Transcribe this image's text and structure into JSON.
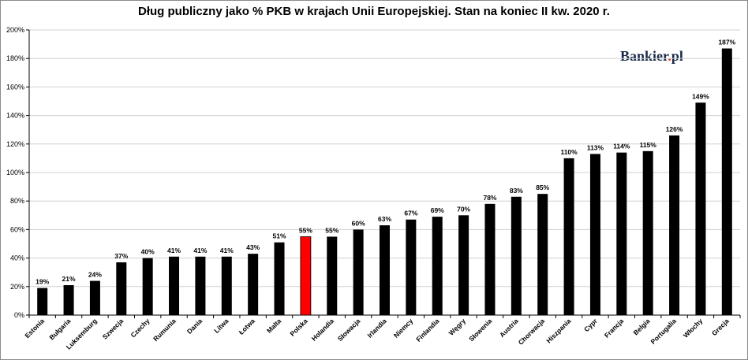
{
  "chart_data": {
    "type": "bar",
    "title": "Dług publiczny jako % PKB w krajach Unii Europejskiej. Stan na koniec II kw. 2020 r.",
    "brand": "Bankier.pl",
    "categories": [
      "Estonia",
      "Bułgaria",
      "Luksemburg",
      "Szwecja",
      "Czechy",
      "Rumunia",
      "Dania",
      "Litwa",
      "Łotwa",
      "Malta",
      "Polska",
      "Holandia",
      "Słowacja",
      "Irlandia",
      "Niemcy",
      "Finlandia",
      "Węgry",
      "Słowenia",
      "Austria",
      "Chorwacja",
      "Hiszpania",
      "Cypr",
      "Francja",
      "Belgia",
      "Portugalia",
      "Włochy",
      "Grecja"
    ],
    "values": [
      19,
      21,
      24,
      37,
      40,
      41,
      41,
      41,
      43,
      51,
      55,
      55,
      60,
      63,
      67,
      69,
      70,
      78,
      83,
      85,
      110,
      113,
      114,
      115,
      126,
      149,
      187
    ],
    "value_labels": [
      "19%",
      "21%",
      "24%",
      "37%",
      "40%",
      "41%",
      "41%",
      "41%",
      "43%",
      "51%",
      "55%",
      "55%",
      "60%",
      "63%",
      "67%",
      "69%",
      "70%",
      "78%",
      "83%",
      "85%",
      "110%",
      "113%",
      "114%",
      "115%",
      "126%",
      "149%",
      "187%"
    ],
    "bar_color": "#000000",
    "highlight": {
      "category": "Polska",
      "color": "#ff0000"
    },
    "ylim": [
      0,
      200
    ],
    "yticks": [
      "0%",
      "20%",
      "40%",
      "60%",
      "80%",
      "100%",
      "120%",
      "140%",
      "160%",
      "180%",
      "200%"
    ],
    "grid": true,
    "xlabel": "",
    "ylabel": ""
  }
}
